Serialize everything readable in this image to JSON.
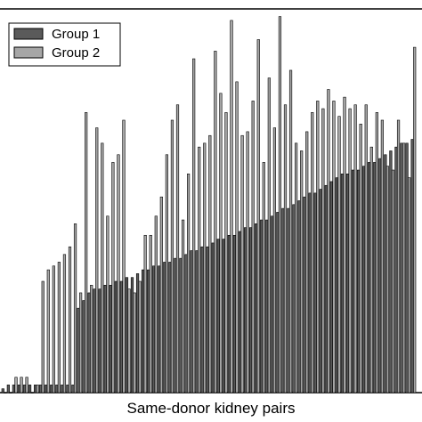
{
  "chart_data": {
    "type": "bar",
    "title": "",
    "xlabel": "Same-donor kidney pairs",
    "ylabel": "",
    "ylim": [
      0,
      100
    ],
    "grid": false,
    "legend_position": "top-left",
    "series": [
      {
        "name": "Group 1",
        "color": "#5a5a5a",
        "values": [
          1,
          2,
          2,
          2,
          2,
          2,
          2,
          2,
          2,
          2,
          2,
          2,
          2,
          2,
          22,
          24,
          26,
          27,
          27,
          28,
          28,
          29,
          29,
          30,
          30,
          31,
          32,
          32,
          33,
          33,
          34,
          34,
          35,
          35,
          36,
          37,
          37,
          38,
          38,
          39,
          40,
          40,
          41,
          41,
          42,
          43,
          43,
          44,
          45,
          45,
          46,
          47,
          48,
          48,
          49,
          50,
          51,
          52,
          52,
          53,
          54,
          55,
          56,
          57,
          57,
          58,
          58,
          59,
          60,
          60,
          61,
          62,
          63,
          64,
          65,
          65,
          66
        ]
      },
      {
        "name": "Group 2",
        "color": "#a6a6a6",
        "values": [
          0,
          0,
          4,
          4,
          4,
          0,
          2,
          29,
          32,
          33,
          34,
          36,
          38,
          44,
          26,
          73,
          28,
          69,
          65,
          46,
          60,
          62,
          71,
          27,
          26,
          29,
          41,
          41,
          46,
          51,
          62,
          71,
          75,
          45,
          57,
          87,
          64,
          65,
          67,
          89,
          78,
          73,
          97,
          81,
          67,
          68,
          76,
          92,
          60,
          82,
          69,
          98,
          75,
          84,
          65,
          63,
          68,
          73,
          76,
          74,
          79,
          76,
          72,
          77,
          74,
          75,
          70,
          75,
          64,
          73,
          71,
          59,
          58,
          71,
          65,
          56,
          90
        ]
      }
    ]
  }
}
